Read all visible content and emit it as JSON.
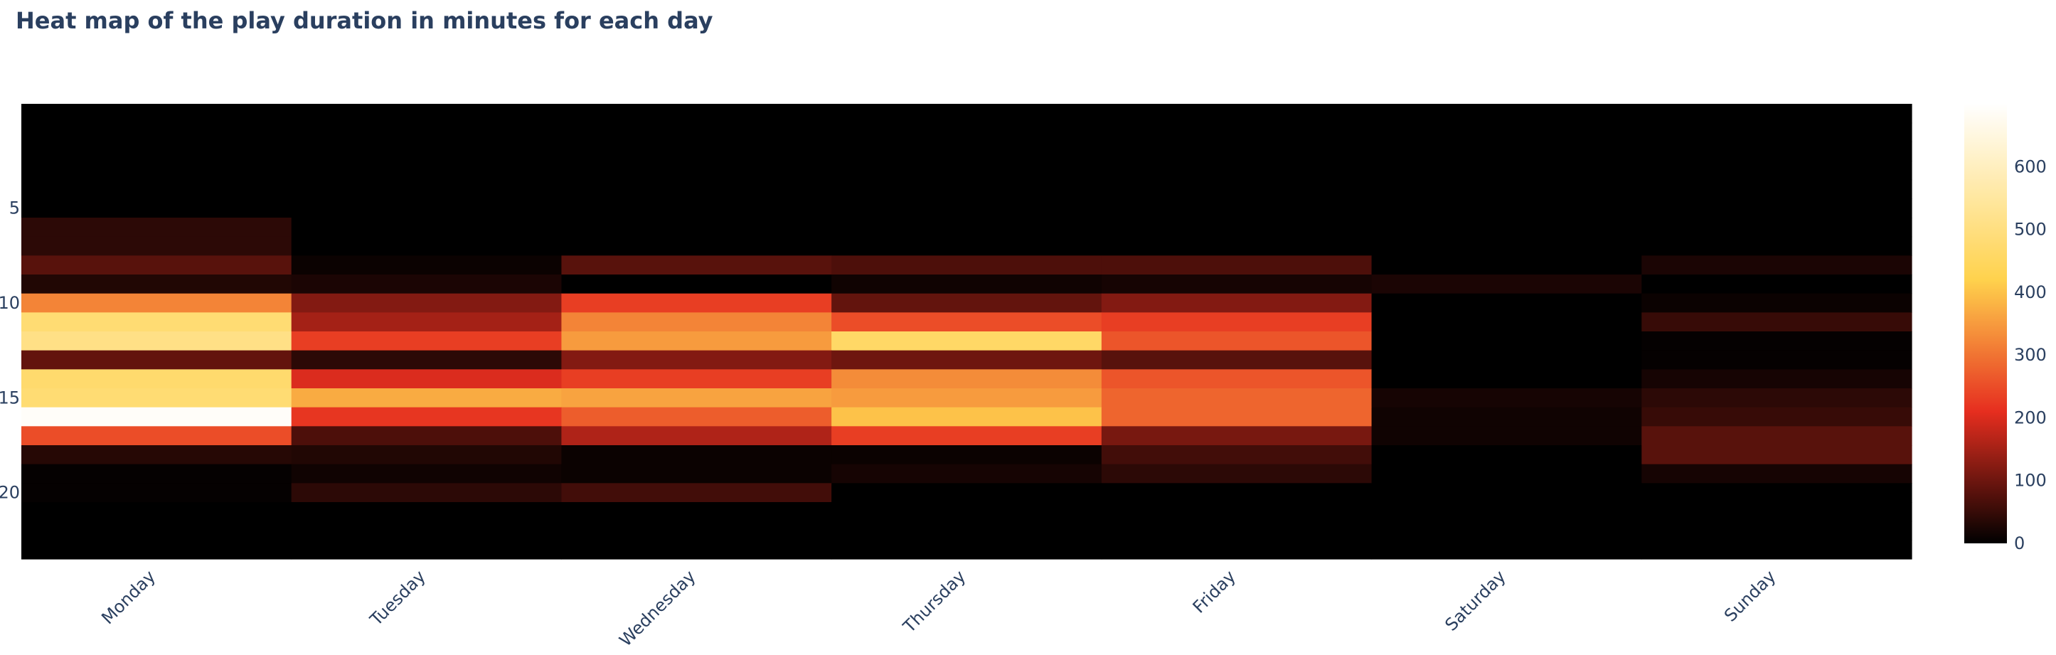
{
  "title": "Heat map of the play duration in minutes for each day",
  "chart_data": {
    "type": "heatmap",
    "title": "Heat map of the play duration in minutes for each day",
    "xlabel": "",
    "ylabel": "",
    "x": [
      "Monday",
      "Tuesday",
      "Wednesday",
      "Thursday",
      "Friday",
      "Saturday",
      "Sunday"
    ],
    "y": [
      0,
      1,
      2,
      3,
      4,
      5,
      6,
      7,
      8,
      9,
      10,
      11,
      12,
      13,
      14,
      15,
      16,
      17,
      18,
      19,
      20,
      21,
      22,
      23
    ],
    "y_tick_values": [
      5,
      10,
      15,
      20
    ],
    "y_tick_labels": [
      "5",
      "10",
      "15",
      "20"
    ],
    "y_reversed": true,
    "zlim": [
      0,
      700
    ],
    "colorbar_tick_values": [
      0,
      100,
      200,
      300,
      400,
      500,
      600
    ],
    "colorbar_tick_labels": [
      "0",
      "100",
      "200",
      "300",
      "400",
      "500",
      "600"
    ],
    "colorscale_name": "Hot",
    "colorscale": [
      [
        0.0,
        "#000000"
      ],
      [
        0.3,
        "#e62e1f"
      ],
      [
        0.6,
        "#ffd24d"
      ],
      [
        1.0,
        "#ffffff"
      ]
    ],
    "z": [
      [
        0,
        0,
        0,
        0,
        0,
        0,
        0
      ],
      [
        0,
        0,
        0,
        0,
        0,
        0,
        0
      ],
      [
        0,
        0,
        0,
        0,
        0,
        0,
        0
      ],
      [
        0,
        0,
        0,
        0,
        0,
        0,
        0
      ],
      [
        0,
        0,
        0,
        0,
        0,
        0,
        0
      ],
      [
        0,
        0,
        0,
        0,
        0,
        0,
        0
      ],
      [
        40,
        0,
        0,
        0,
        0,
        0,
        0
      ],
      [
        40,
        0,
        0,
        0,
        0,
        0,
        0
      ],
      [
        80,
        10,
        80,
        70,
        70,
        0,
        25
      ],
      [
        30,
        25,
        0,
        15,
        20,
        25,
        0
      ],
      [
        320,
        120,
        230,
        90,
        120,
        0,
        10
      ],
      [
        480,
        150,
        320,
        250,
        230,
        0,
        50
      ],
      [
        510,
        230,
        350,
        460,
        260,
        0,
        5
      ],
      [
        90,
        40,
        120,
        100,
        80,
        0,
        5
      ],
      [
        470,
        200,
        230,
        330,
        260,
        0,
        20
      ],
      [
        480,
        370,
        360,
        350,
        280,
        20,
        40
      ],
      [
        690,
        220,
        270,
        400,
        280,
        15,
        50
      ],
      [
        250,
        70,
        160,
        230,
        110,
        15,
        80
      ],
      [
        35,
        30,
        10,
        10,
        60,
        0,
        80
      ],
      [
        5,
        15,
        10,
        20,
        40,
        0,
        20
      ],
      [
        5,
        40,
        60,
        0,
        0,
        0,
        0
      ],
      [
        0,
        0,
        0,
        0,
        0,
        0,
        0
      ],
      [
        0,
        0,
        0,
        0,
        0,
        0,
        0
      ],
      [
        0,
        0,
        0,
        0,
        0,
        0,
        0
      ]
    ]
  }
}
